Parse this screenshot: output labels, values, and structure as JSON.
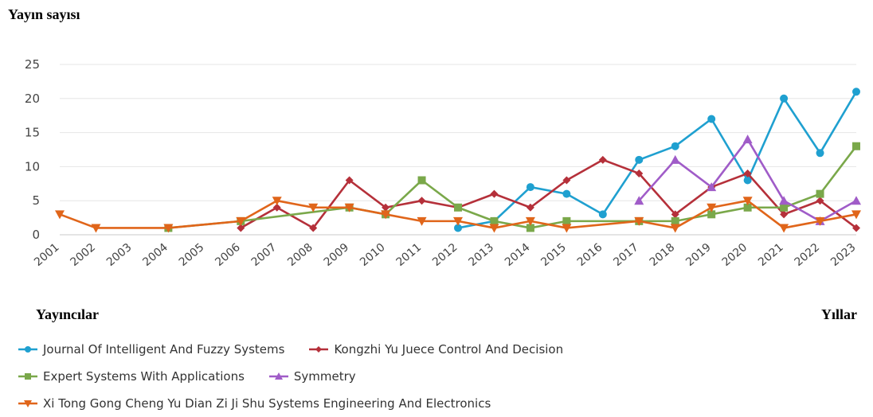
{
  "headings": {
    "y_title": "Yayın sayısı",
    "publishers_title": "Yayıncılar",
    "x_title": "Yıllar"
  },
  "chart_data": {
    "type": "line",
    "title": "",
    "xlabel": "Yıllar",
    "ylabel": "Yayın sayısı",
    "ylim": [
      0,
      25
    ],
    "yticks": [
      0,
      5,
      10,
      15,
      20,
      25
    ],
    "grid": true,
    "legend_position": "bottom",
    "categories": [
      "2001",
      "2002",
      "2003",
      "2004",
      "2005",
      "2006",
      "2007",
      "2008",
      "2009",
      "2010",
      "2011",
      "2012",
      "2013",
      "2014",
      "2015",
      "2016",
      "2017",
      "2018",
      "2019",
      "2020",
      "2021",
      "2022",
      "2023"
    ],
    "series": [
      {
        "name": "Journal Of Intelligent And Fuzzy Systems",
        "color": "#1fa0d0",
        "marker": "circle",
        "points": [
          [
            "2012",
            1
          ],
          [
            "2013",
            2
          ],
          [
            "2014",
            7
          ],
          [
            "2015",
            6
          ],
          [
            "2016",
            3
          ],
          [
            "2017",
            11
          ],
          [
            "2018",
            13
          ],
          [
            "2019",
            17
          ],
          [
            "2020",
            8
          ],
          [
            "2021",
            20
          ],
          [
            "2022",
            12
          ],
          [
            "2023",
            21
          ]
        ]
      },
      {
        "name": "Kongzhi Yu Juece Control And Decision",
        "color": "#b5303a",
        "marker": "diamond",
        "points": [
          [
            "2006",
            1
          ],
          [
            "2007",
            4
          ],
          [
            "2008",
            1
          ],
          [
            "2009",
            8
          ],
          [
            "2010",
            4
          ],
          [
            "2011",
            5
          ],
          [
            "2012",
            4
          ],
          [
            "2013",
            6
          ],
          [
            "2014",
            4
          ],
          [
            "2015",
            8
          ],
          [
            "2016",
            11
          ],
          [
            "2017",
            9
          ],
          [
            "2018",
            3
          ],
          [
            "2019",
            7
          ],
          [
            "2020",
            9
          ],
          [
            "2021",
            3
          ],
          [
            "2022",
            5
          ],
          [
            "2023",
            1
          ]
        ]
      },
      {
        "name": "Expert Systems With Applications",
        "color": "#7aa84a",
        "marker": "square",
        "points": [
          [
            "2004",
            1
          ],
          [
            "2006",
            2
          ],
          [
            "2009",
            4
          ],
          [
            "2010",
            3
          ],
          [
            "2011",
            8
          ],
          [
            "2012",
            4
          ],
          [
            "2013",
            2
          ],
          [
            "2014",
            1
          ],
          [
            "2015",
            2
          ],
          [
            "2017",
            2
          ],
          [
            "2018",
            2
          ],
          [
            "2019",
            3
          ],
          [
            "2020",
            4
          ],
          [
            "2021",
            4
          ],
          [
            "2022",
            6
          ],
          [
            "2023",
            13
          ]
        ]
      },
      {
        "name": "Symmetry",
        "color": "#a05cc8",
        "marker": "triangle-up",
        "points": [
          [
            "2017",
            5
          ],
          [
            "2018",
            11
          ],
          [
            "2019",
            7
          ],
          [
            "2020",
            14
          ],
          [
            "2021",
            5
          ],
          [
            "2022",
            2
          ],
          [
            "2023",
            5
          ]
        ]
      },
      {
        "name": "Xi Tong Gong Cheng Yu Dian Zi Ji Shu Systems Engineering And Electronics",
        "color": "#e0651a",
        "marker": "triangle-down",
        "points": [
          [
            "2001",
            3
          ],
          [
            "2002",
            1
          ],
          [
            "2004",
            1
          ],
          [
            "2006",
            2
          ],
          [
            "2007",
            5
          ],
          [
            "2008",
            4
          ],
          [
            "2009",
            4
          ],
          [
            "2010",
            3
          ],
          [
            "2011",
            2
          ],
          [
            "2012",
            2
          ],
          [
            "2013",
            1
          ],
          [
            "2014",
            2
          ],
          [
            "2015",
            1
          ],
          [
            "2017",
            2
          ],
          [
            "2018",
            1
          ],
          [
            "2019",
            4
          ],
          [
            "2020",
            5
          ],
          [
            "2021",
            1
          ],
          [
            "2022",
            2
          ],
          [
            "2023",
            3
          ]
        ]
      }
    ]
  }
}
